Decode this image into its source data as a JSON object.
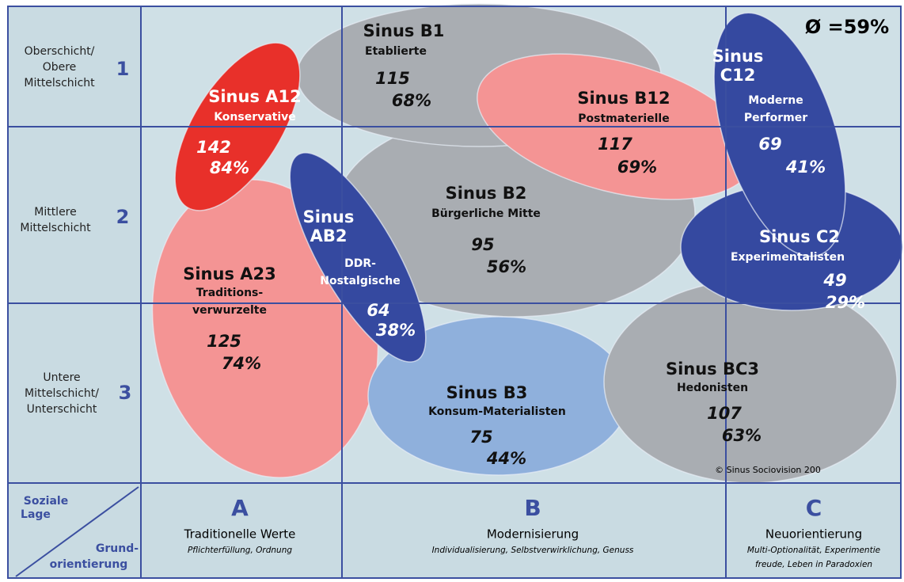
{
  "average": "Ø =59%",
  "rows": [
    {
      "label": [
        "Oberschicht/",
        "Obere",
        "Mittelschicht"
      ],
      "number": "1"
    },
    {
      "label": [
        "Mittlere",
        "Mittelschicht"
      ],
      "number": "2"
    },
    {
      "label": [
        "Untere",
        "Mittelschicht/",
        "Unterschicht"
      ],
      "number": "3"
    }
  ],
  "corner": {
    "top": [
      "Soziale",
      "Lage"
    ],
    "bottom": [
      "Grund-",
      "orientierung"
    ]
  },
  "columns": [
    {
      "letter": "A",
      "title": "Traditionelle Werte",
      "subtitle": [
        "Pflichterfüllung, Ordnung"
      ]
    },
    {
      "letter": "B",
      "title": "Modernisierung",
      "subtitle": [
        "Individualisierung, Selbstverwirklichung, Genuss"
      ]
    },
    {
      "letter": "C",
      "title": "Neuorientierung",
      "subtitle": [
        "Multi-Optionalität, Experimentie",
        "freude, Leben in Paradoxien"
      ]
    }
  ],
  "milieus": [
    {
      "name": [
        "Sinus A23"
      ],
      "description": [
        "Traditions-",
        "verwurzelte"
      ],
      "index": "125",
      "share": "74%"
    },
    {
      "name": [
        "Sinus B3"
      ],
      "description": [
        "Konsum-Materialisten"
      ],
      "index": "75",
      "share": "44%"
    },
    {
      "name": [
        "Sinus BC3"
      ],
      "description": [
        "Hedonisten"
      ],
      "index": "107",
      "share": "63%"
    },
    {
      "name": [
        "Sinus B2"
      ],
      "description": [
        "Bürgerliche Mitte"
      ],
      "index": "95",
      "share": "56%"
    },
    {
      "name": [
        "Sinus B1"
      ],
      "description": [
        "Etablierte"
      ],
      "index": "115",
      "share": "68%"
    },
    {
      "name": [
        "Sinus B12"
      ],
      "description": [
        "Postmaterielle"
      ],
      "index": "117",
      "share": "69%"
    },
    {
      "name": [
        "Sinus A12"
      ],
      "description": [
        "Konservative"
      ],
      "index": "142",
      "share": "84%"
    },
    {
      "name": [
        "Sinus",
        "AB2"
      ],
      "description": [
        "DDR-",
        "Nostalgische"
      ],
      "index": "64",
      "share": "38%"
    },
    {
      "name": [
        "Sinus C2"
      ],
      "description": [
        "Experimentalisten"
      ],
      "index": "49",
      "share": "29%"
    },
    {
      "name": [
        "Sinus",
        "C12"
      ],
      "description": [
        "Moderne",
        "Performer"
      ],
      "index": "69",
      "share": "41%"
    }
  ],
  "copyright": "© Sinus Sociovision 200"
}
